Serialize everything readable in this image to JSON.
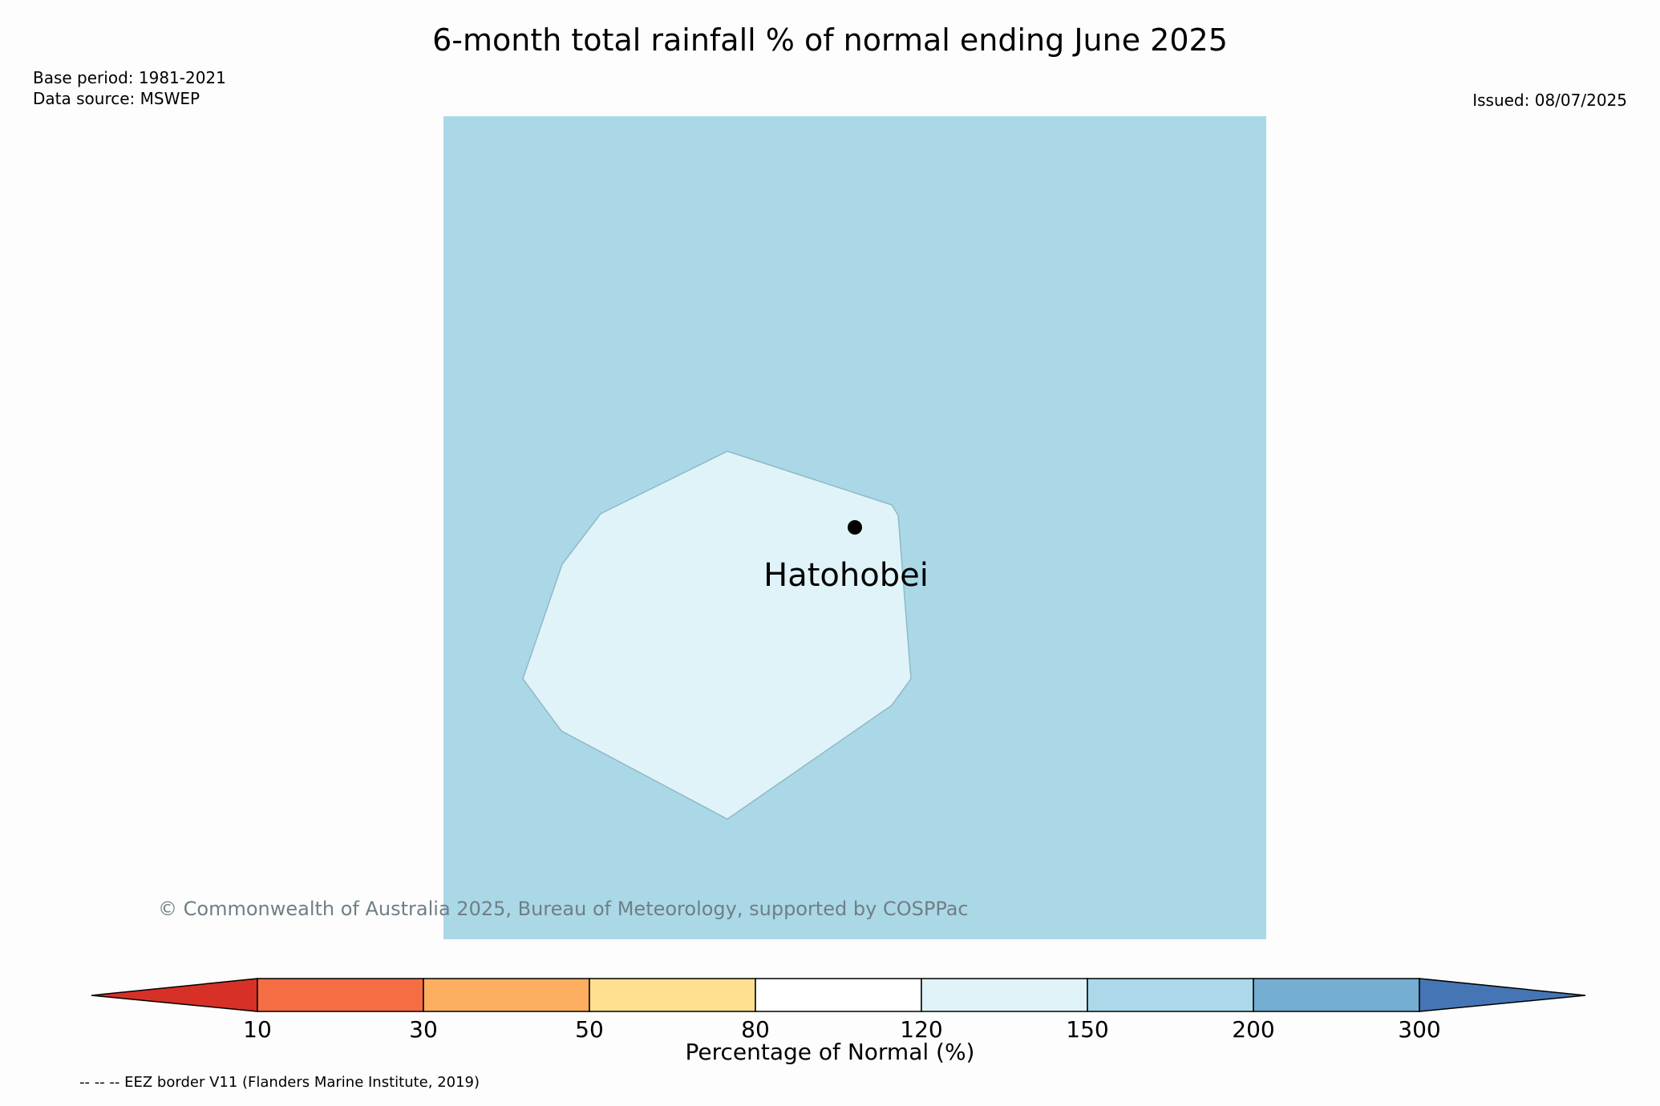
{
  "title": "6-month total rainfall % of normal ending June 2025",
  "base_period": "Base period: 1981-2021",
  "data_source": "Data source: MSWEP",
  "issued": "Issued: 08/07/2025",
  "place_label": "Hatohobei",
  "copyright": "© Commonwealth of Australia 2025, Bureau of Meteorology, supported by COSPPac",
  "colorbar": {
    "label": "Percentage of Normal (%)",
    "ticks": [
      "10",
      "30",
      "50",
      "80",
      "120",
      "150",
      "200",
      "300"
    ],
    "colors": [
      "#d73027",
      "#f46d43",
      "#fdae61",
      "#fee090",
      "#ffffff",
      "#e0f3f8",
      "#abd9e9",
      "#74add1",
      "#4575b4"
    ]
  },
  "map_colors": {
    "background": "#abd8e7",
    "eez": "#e0f3f8",
    "eez_outline": "#8fb9c7"
  },
  "footnote": "-- -- -- EEZ border V11 (Flanders Marine Institute, 2019)"
}
